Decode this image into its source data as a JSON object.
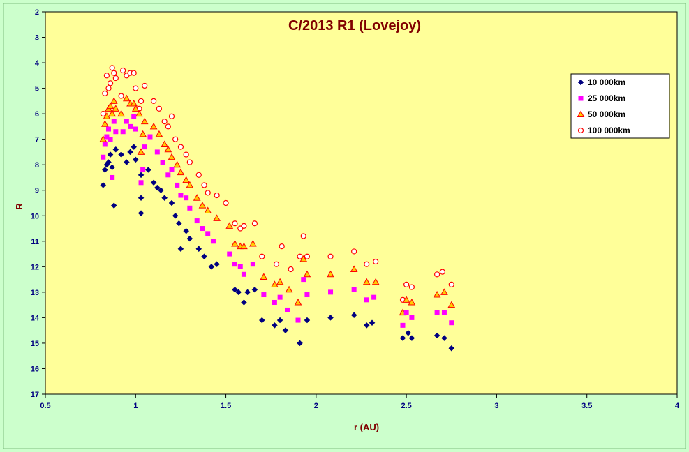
{
  "chart_data": {
    "type": "scatter",
    "title": "C/2013 R1 (Lovejoy)",
    "xlabel": "r (AU)",
    "ylabel": "R",
    "xlim": [
      0.5,
      4
    ],
    "ylim": [
      2,
      17
    ],
    "y_inverted": true,
    "x_ticks": [
      "0.5",
      "1",
      "1.5",
      "2",
      "2.5",
      "3",
      "3.5",
      "4"
    ],
    "y_ticks": [
      "2",
      "3",
      "4",
      "5",
      "6",
      "7",
      "8",
      "9",
      "10",
      "11",
      "12",
      "13",
      "14",
      "15",
      "16",
      "17"
    ],
    "grid": false,
    "legend_position": "top-right",
    "colors": {
      "plot_background": "#ffff99",
      "page_background": "#ccffcc",
      "axis_text": "#000080",
      "title_text": "#800000"
    },
    "series": [
      {
        "name": "10 000km",
        "marker": "diamond",
        "color": "#000080",
        "points": [
          [
            0.82,
            8.8
          ],
          [
            0.83,
            8.2
          ],
          [
            0.84,
            8.0
          ],
          [
            0.85,
            7.9
          ],
          [
            0.86,
            7.6
          ],
          [
            0.87,
            8.1
          ],
          [
            0.88,
            9.6
          ],
          [
            0.89,
            7.4
          ],
          [
            0.92,
            7.6
          ],
          [
            0.95,
            7.9
          ],
          [
            0.97,
            7.5
          ],
          [
            0.99,
            7.3
          ],
          [
            1.0,
            7.8
          ],
          [
            1.03,
            8.4
          ],
          [
            1.03,
            9.3
          ],
          [
            1.03,
            9.9
          ],
          [
            1.07,
            8.2
          ],
          [
            1.1,
            8.7
          ],
          [
            1.12,
            8.9
          ],
          [
            1.14,
            9.0
          ],
          [
            1.16,
            9.3
          ],
          [
            1.2,
            9.5
          ],
          [
            1.22,
            10.0
          ],
          [
            1.24,
            10.3
          ],
          [
            1.25,
            11.3
          ],
          [
            1.28,
            10.6
          ],
          [
            1.3,
            10.9
          ],
          [
            1.35,
            11.3
          ],
          [
            1.38,
            11.6
          ],
          [
            1.42,
            12.0
          ],
          [
            1.45,
            11.9
          ],
          [
            1.55,
            12.9
          ],
          [
            1.57,
            13.0
          ],
          [
            1.6,
            13.4
          ],
          [
            1.62,
            13.0
          ],
          [
            1.66,
            12.9
          ],
          [
            1.7,
            14.1
          ],
          [
            1.77,
            14.3
          ],
          [
            1.8,
            14.1
          ],
          [
            1.83,
            14.5
          ],
          [
            1.91,
            15.0
          ],
          [
            1.95,
            14.1
          ],
          [
            2.08,
            14.0
          ],
          [
            2.21,
            13.9
          ],
          [
            2.28,
            14.3
          ],
          [
            2.31,
            14.2
          ],
          [
            2.48,
            14.8
          ],
          [
            2.51,
            14.6
          ],
          [
            2.53,
            14.8
          ],
          [
            2.67,
            14.7
          ],
          [
            2.71,
            14.8
          ],
          [
            2.75,
            15.2
          ]
        ]
      },
      {
        "name": "25 000km",
        "marker": "square",
        "color": "#ff00ff",
        "points": [
          [
            0.82,
            7.7
          ],
          [
            0.83,
            7.2
          ],
          [
            0.84,
            6.9
          ],
          [
            0.85,
            6.6
          ],
          [
            0.86,
            7.0
          ],
          [
            0.87,
            8.5
          ],
          [
            0.88,
            6.3
          ],
          [
            0.89,
            6.7
          ],
          [
            0.93,
            6.7
          ],
          [
            0.95,
            6.3
          ],
          [
            0.97,
            6.5
          ],
          [
            0.99,
            6.1
          ],
          [
            1.0,
            6.6
          ],
          [
            1.03,
            8.7
          ],
          [
            1.04,
            8.2
          ],
          [
            1.05,
            7.3
          ],
          [
            1.08,
            6.9
          ],
          [
            1.12,
            7.5
          ],
          [
            1.15,
            7.9
          ],
          [
            1.18,
            8.4
          ],
          [
            1.2,
            8.2
          ],
          [
            1.23,
            8.8
          ],
          [
            1.25,
            9.2
          ],
          [
            1.28,
            9.3
          ],
          [
            1.3,
            9.7
          ],
          [
            1.34,
            10.2
          ],
          [
            1.37,
            10.5
          ],
          [
            1.4,
            10.7
          ],
          [
            1.43,
            11.0
          ],
          [
            1.52,
            11.5
          ],
          [
            1.55,
            11.9
          ],
          [
            1.58,
            12.0
          ],
          [
            1.6,
            12.3
          ],
          [
            1.65,
            11.9
          ],
          [
            1.71,
            13.1
          ],
          [
            1.77,
            13.4
          ],
          [
            1.8,
            13.2
          ],
          [
            1.84,
            13.7
          ],
          [
            1.9,
            14.1
          ],
          [
            1.93,
            12.5
          ],
          [
            1.95,
            13.1
          ],
          [
            2.08,
            13.0
          ],
          [
            2.21,
            12.9
          ],
          [
            2.28,
            13.3
          ],
          [
            2.32,
            13.2
          ],
          [
            2.48,
            14.3
          ],
          [
            2.5,
            13.8
          ],
          [
            2.53,
            14.0
          ],
          [
            2.67,
            13.8
          ],
          [
            2.71,
            13.8
          ],
          [
            2.75,
            14.2
          ]
        ]
      },
      {
        "name": "50 000km",
        "marker": "triangle",
        "color": "#ff0000",
        "points": [
          [
            0.82,
            7.0
          ],
          [
            0.83,
            6.4
          ],
          [
            0.84,
            6.1
          ],
          [
            0.85,
            5.8
          ],
          [
            0.86,
            5.7
          ],
          [
            0.87,
            6.0
          ],
          [
            0.88,
            5.5
          ],
          [
            0.89,
            5.8
          ],
          [
            0.92,
            6.0
          ],
          [
            0.95,
            5.4
          ],
          [
            0.97,
            5.6
          ],
          [
            0.99,
            5.6
          ],
          [
            1.0,
            5.8
          ],
          [
            1.02,
            6.0
          ],
          [
            1.03,
            7.5
          ],
          [
            1.04,
            6.8
          ],
          [
            1.05,
            6.3
          ],
          [
            1.1,
            6.5
          ],
          [
            1.13,
            6.8
          ],
          [
            1.16,
            7.2
          ],
          [
            1.18,
            7.4
          ],
          [
            1.2,
            7.7
          ],
          [
            1.23,
            8.0
          ],
          [
            1.25,
            8.3
          ],
          [
            1.28,
            8.6
          ],
          [
            1.3,
            8.8
          ],
          [
            1.34,
            9.3
          ],
          [
            1.37,
            9.6
          ],
          [
            1.4,
            9.8
          ],
          [
            1.45,
            10.1
          ],
          [
            1.52,
            10.4
          ],
          [
            1.55,
            11.1
          ],
          [
            1.58,
            11.2
          ],
          [
            1.6,
            11.2
          ],
          [
            1.65,
            11.1
          ],
          [
            1.71,
            12.4
          ],
          [
            1.77,
            12.7
          ],
          [
            1.8,
            12.6
          ],
          [
            1.85,
            12.9
          ],
          [
            1.9,
            13.4
          ],
          [
            1.93,
            11.7
          ],
          [
            1.95,
            12.3
          ],
          [
            2.08,
            12.3
          ],
          [
            2.21,
            12.1
          ],
          [
            2.28,
            12.6
          ],
          [
            2.33,
            12.6
          ],
          [
            2.48,
            13.8
          ],
          [
            2.5,
            13.3
          ],
          [
            2.53,
            13.4
          ],
          [
            2.67,
            13.1
          ],
          [
            2.71,
            13.0
          ],
          [
            2.75,
            13.5
          ]
        ]
      },
      {
        "name": "100 000km",
        "marker": "circle",
        "color": "#ff0000",
        "points": [
          [
            0.82,
            6.0
          ],
          [
            0.83,
            5.2
          ],
          [
            0.84,
            4.5
          ],
          [
            0.85,
            5.0
          ],
          [
            0.86,
            4.8
          ],
          [
            0.87,
            4.2
          ],
          [
            0.88,
            4.4
          ],
          [
            0.89,
            4.6
          ],
          [
            0.92,
            5.3
          ],
          [
            0.93,
            4.3
          ],
          [
            0.95,
            4.5
          ],
          [
            0.97,
            4.4
          ],
          [
            0.99,
            4.4
          ],
          [
            1.0,
            5.0
          ],
          [
            1.02,
            5.8
          ],
          [
            1.03,
            5.5
          ],
          [
            1.05,
            4.9
          ],
          [
            1.1,
            5.5
          ],
          [
            1.13,
            5.8
          ],
          [
            1.16,
            6.3
          ],
          [
            1.18,
            6.5
          ],
          [
            1.2,
            6.1
          ],
          [
            1.22,
            7.0
          ],
          [
            1.25,
            7.3
          ],
          [
            1.28,
            7.6
          ],
          [
            1.3,
            7.9
          ],
          [
            1.35,
            8.4
          ],
          [
            1.38,
            8.8
          ],
          [
            1.4,
            9.1
          ],
          [
            1.45,
            9.2
          ],
          [
            1.5,
            9.5
          ],
          [
            1.55,
            10.3
          ],
          [
            1.58,
            10.5
          ],
          [
            1.6,
            10.4
          ],
          [
            1.66,
            10.3
          ],
          [
            1.7,
            11.6
          ],
          [
            1.78,
            11.9
          ],
          [
            1.81,
            11.2
          ],
          [
            1.86,
            12.1
          ],
          [
            1.91,
            11.6
          ],
          [
            1.93,
            10.8
          ],
          [
            1.95,
            11.6
          ],
          [
            2.08,
            11.6
          ],
          [
            2.21,
            11.4
          ],
          [
            2.28,
            11.9
          ],
          [
            2.33,
            11.8
          ],
          [
            2.48,
            13.3
          ],
          [
            2.5,
            12.7
          ],
          [
            2.53,
            12.8
          ],
          [
            2.67,
            12.3
          ],
          [
            2.7,
            12.2
          ],
          [
            2.75,
            12.7
          ]
        ]
      }
    ]
  }
}
